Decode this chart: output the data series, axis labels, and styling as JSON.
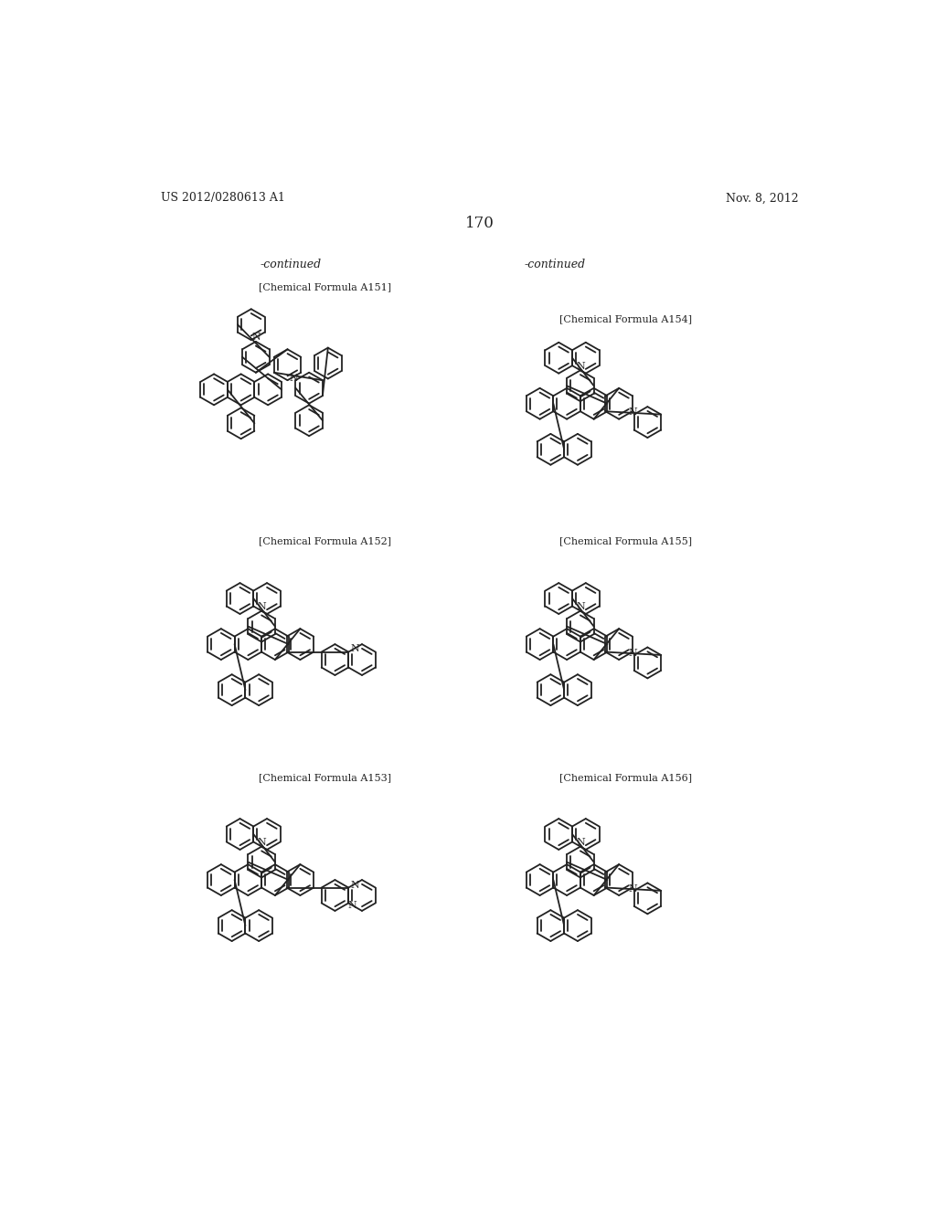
{
  "page_header_left": "US 2012/0280613 A1",
  "page_header_right": "Nov. 8, 2012",
  "page_number": "170",
  "continued_left": "-continued",
  "continued_right": "-continued",
  "label_A151": "[Chemical Formula A151]",
  "label_A152": "[Chemical Formula A152]",
  "label_A153": "[Chemical Formula A153]",
  "label_A154": "[Chemical Formula A154]",
  "label_A155": "[Chemical Formula A155]",
  "label_A156": "[Chemical Formula A156]",
  "bg": "#ffffff",
  "tc": "#000000",
  "lc": "#222222",
  "lw": 1.3,
  "ring_r": 22
}
